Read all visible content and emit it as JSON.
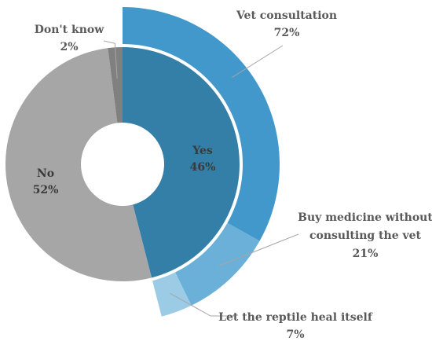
{
  "chart_data": {
    "type": "sunburst",
    "inner": [
      {
        "name": "Yes",
        "value": 46,
        "pct_label": "46%",
        "color": "#337fa8"
      },
      {
        "name": "No",
        "value": 52,
        "pct_label": "52%",
        "color": "#a6a6a6"
      },
      {
        "name": "Don't know",
        "value": 2,
        "pct_label": "2%",
        "color": "#808080"
      }
    ],
    "outer": [
      {
        "name": "Vet consultation",
        "value": 72,
        "pct_label": "72%",
        "color": "#4298cb"
      },
      {
        "name": "Buy medicine without consulting the vet",
        "name_lines": [
          "Buy medicine without",
          "consulting the vet"
        ],
        "value": 21,
        "pct_label": "21%",
        "color": "#6ab0d8"
      },
      {
        "name": "Let the reptile heal itself",
        "value": 7,
        "pct_label": "7%",
        "color": "#9ccbe6"
      }
    ]
  }
}
